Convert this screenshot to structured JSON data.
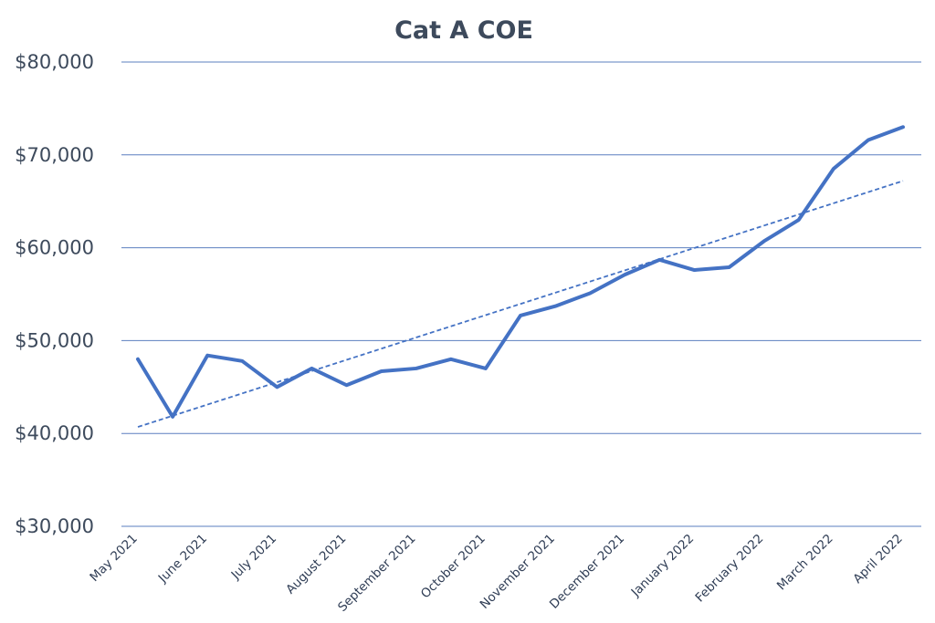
{
  "chart_data": {
    "type": "line",
    "title": "Cat A COE",
    "xlabel": "",
    "ylabel": "",
    "ylim": [
      30000,
      80000
    ],
    "y_ticks": [
      30000,
      40000,
      50000,
      60000,
      70000,
      80000
    ],
    "y_tick_labels": [
      "$30,000",
      "$40,000",
      "$50,000",
      "$60,000",
      "$70,000",
      "$80,000"
    ],
    "x_tick_labels": [
      "May 2021",
      "June 2021",
      "July 2021",
      "August 2021",
      "September 2021",
      "October 2021",
      "November 2021",
      "December 2021",
      "January 2022",
      "February 2022",
      "March 2022",
      "April 2022"
    ],
    "grid": "horizontal",
    "legend": "none",
    "colors": {
      "series": "#4472c4",
      "grid": "#5b7fbf",
      "text": "#3d4a5c"
    },
    "series": [
      {
        "style": "solid",
        "values": [
          48000,
          41800,
          48400,
          47800,
          45000,
          47000,
          45200,
          46700,
          47000,
          48000,
          47000,
          52700,
          53700,
          55100,
          57100,
          58700,
          57600,
          57900,
          60700,
          63000,
          68500,
          71600,
          73000
        ]
      }
    ],
    "trendline": {
      "type": "linear",
      "style": "dashed",
      "start_value": 40700,
      "end_value": 67200
    }
  }
}
